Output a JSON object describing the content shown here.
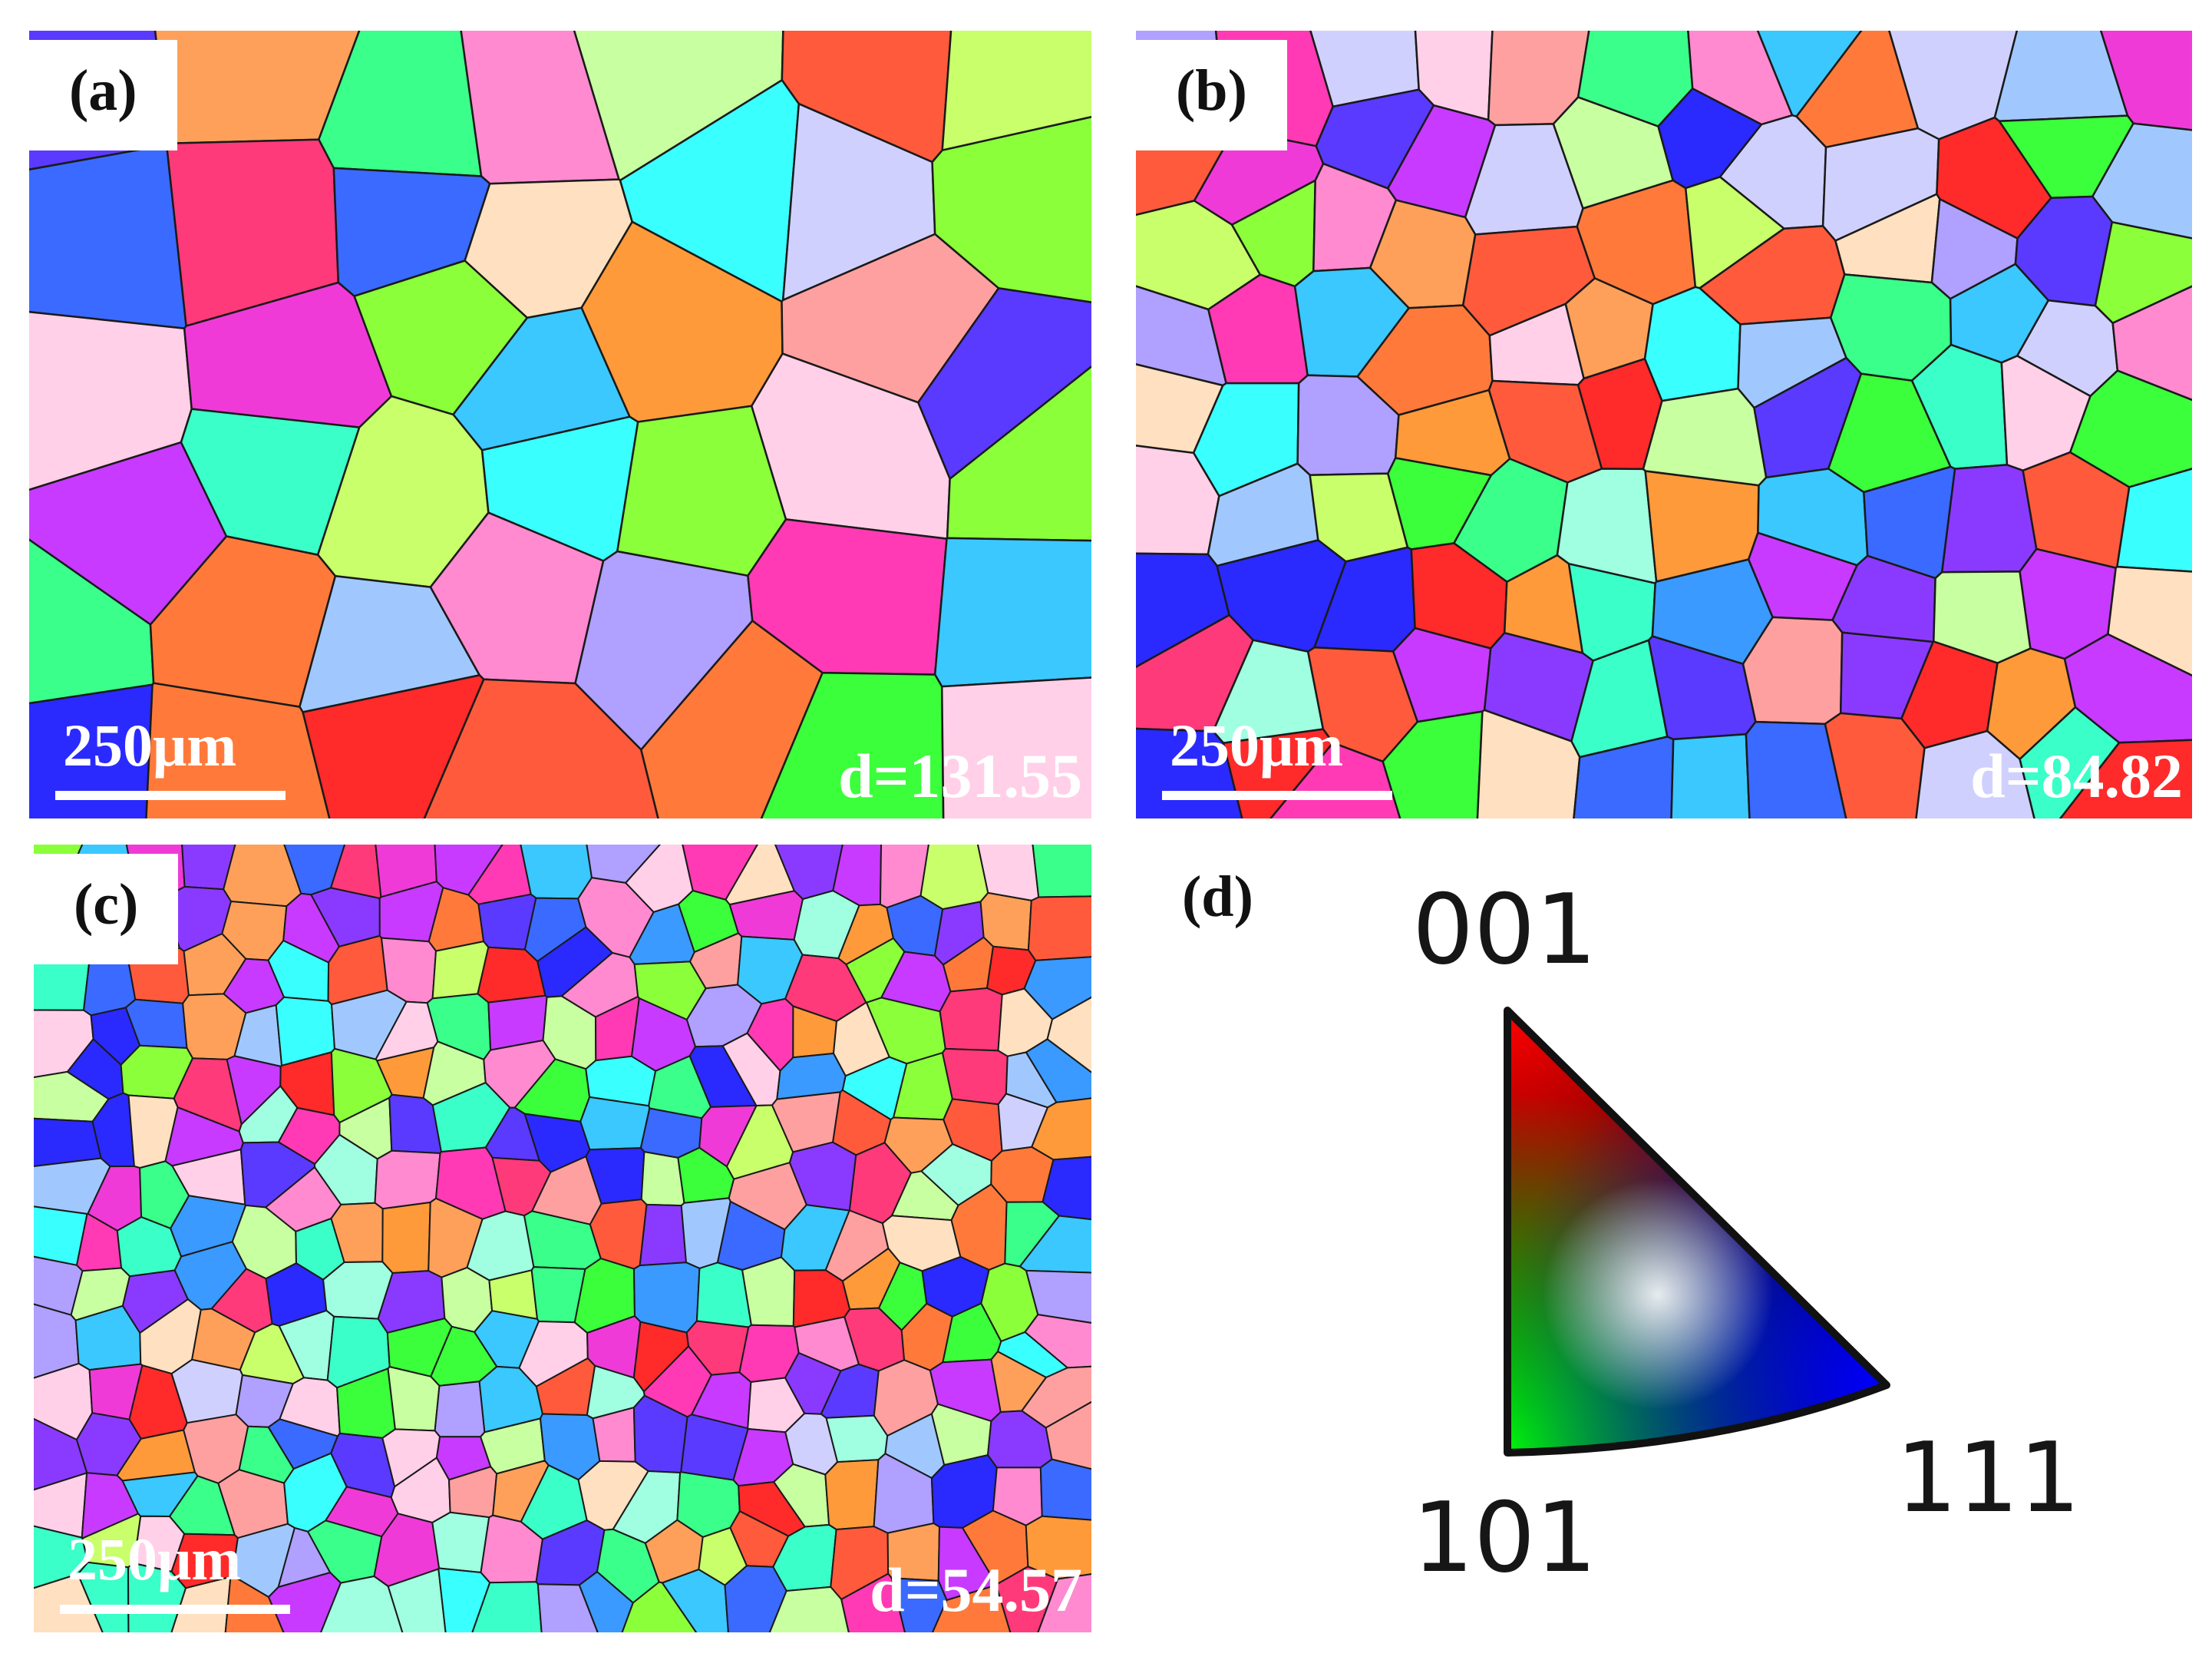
{
  "panels": [
    {
      "id": "a",
      "label": "(a)",
      "scale": "250μm",
      "diameter": "d=131.55",
      "grain_count": 40,
      "seed": 11
    },
    {
      "id": "b",
      "label": "(b)",
      "scale": "250μm",
      "diameter": "d=84.82",
      "grain_count": 110,
      "seed": 29
    },
    {
      "id": "c",
      "label": "(c)",
      "scale": "250μm",
      "diameter": "d=54.57",
      "grain_count": 320,
      "seed": 53
    }
  ],
  "legend": {
    "label": "(d)",
    "corner_001": "001",
    "corner_101": "101",
    "corner_111": "111"
  },
  "colors": {
    "grain_boundary": "#1a1a1a",
    "scale_text": "#ffffff",
    "palette": [
      "#ff2a2a",
      "#ff5a3c",
      "#ff7a3a",
      "#ff9a3a",
      "#ff3a7a",
      "#ff3ab4",
      "#f03ad8",
      "#c83aff",
      "#8a3aff",
      "#5a3aff",
      "#2a2aff",
      "#3a6aff",
      "#3a9aff",
      "#3ac8ff",
      "#3affff",
      "#3affc8",
      "#3aff8a",
      "#3aff3a",
      "#8aff3a",
      "#c8ff6a",
      "#ffa0a0",
      "#ff8ad0",
      "#b0a0ff",
      "#a0c8ff",
      "#a0ffe0",
      "#c8ffa0",
      "#ffe0c0",
      "#ffd0e8",
      "#d0d0ff",
      "#ffa05a"
    ]
  }
}
